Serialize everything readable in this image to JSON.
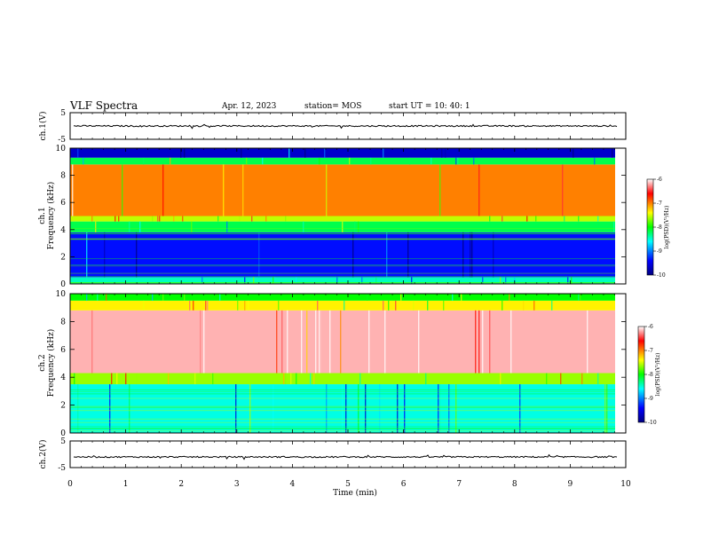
{
  "header": {
    "title": "VLF Spectra",
    "date": "Apr. 12, 2023",
    "station": "station= MOS",
    "start": "start UT =   10: 40: 1"
  },
  "chart_data": [
    {
      "type": "line",
      "panel": "ch1-voltage",
      "ylabel": "ch.1(V)",
      "ylim": [
        -5,
        5
      ],
      "yticks": [
        "5",
        "-5"
      ],
      "level_approx": 0
    },
    {
      "type": "heatmap",
      "panel": "ch1-spectrogram",
      "ylabel": "ch.1\nFrequency (kHz)",
      "ylim": [
        0,
        10
      ],
      "xlim": [
        0,
        10
      ],
      "yticks": [
        "0",
        "2",
        "4",
        "6",
        "8",
        "10"
      ],
      "bands": [
        {
          "from": 0,
          "to": 0.5,
          "level": -8.5
        },
        {
          "from": 0.5,
          "to": 3.8,
          "level": -9.3
        },
        {
          "from": 3.8,
          "to": 4.6,
          "level": -8.2
        },
        {
          "from": 4.6,
          "to": 5.0,
          "level": -7.5
        },
        {
          "from": 5.0,
          "to": 8.8,
          "level": -7.0
        },
        {
          "from": 8.8,
          "to": 9.3,
          "level": -8.2
        },
        {
          "from": 9.3,
          "to": 10,
          "level": -9.6
        }
      ],
      "colorbar": {
        "label": "log(PSD)(V²/Hz)",
        "min": -10,
        "max": -6,
        "ticks": [
          "-6",
          "-7",
          "-8",
          "-9",
          "-10"
        ]
      }
    },
    {
      "type": "heatmap",
      "panel": "ch2-spectrogram",
      "ylabel": "ch.2\nFrequency (kHz)",
      "ylim": [
        0,
        10
      ],
      "xlim": [
        0,
        10
      ],
      "yticks": [
        "0",
        "2",
        "4",
        "6",
        "8",
        "10"
      ],
      "bands": [
        {
          "from": 0,
          "to": 3.5,
          "level": -8.6
        },
        {
          "from": 3.5,
          "to": 4.3,
          "level": -7.6
        },
        {
          "from": 4.3,
          "to": 8.8,
          "level": -6.2
        },
        {
          "from": 8.8,
          "to": 9.5,
          "level": -7.3
        },
        {
          "from": 9.5,
          "to": 10,
          "level": -8.0
        }
      ],
      "colorbar": {
        "label": "log(PSD)(V²/Hz)",
        "min": -10,
        "max": -6,
        "ticks": [
          "-6",
          "-7",
          "-8",
          "-9",
          "-10"
        ]
      }
    },
    {
      "type": "line",
      "panel": "ch2-voltage",
      "ylabel": "ch.2(V)",
      "ylim": [
        -5,
        5
      ],
      "yticks": [
        "5",
        "-5"
      ],
      "level_approx": -1
    }
  ],
  "xaxis": {
    "label": "Time (min)",
    "range": [
      0,
      9.85
    ],
    "ticks": [
      "0",
      "1",
      "2",
      "3",
      "4",
      "5",
      "6",
      "7",
      "8",
      "9",
      "10"
    ]
  },
  "colors": {
    "cmap": [
      "#000080",
      "#0000ff",
      "#00ffff",
      "#00ff00",
      "#ffff00",
      "#ff0000",
      "#ffffff"
    ]
  }
}
